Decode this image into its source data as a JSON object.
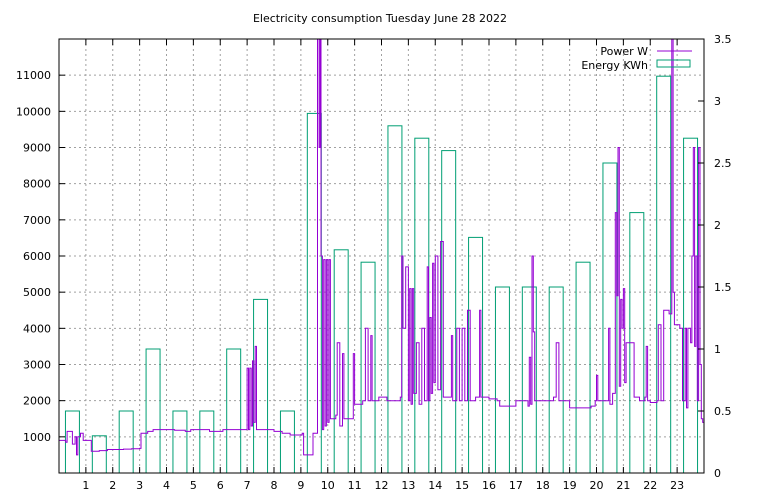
{
  "chart_data": {
    "type": "bar",
    "title": "Electricity consumption Tuesday June 28 2022",
    "grid": true,
    "legend_position": "top-right",
    "colors": {
      "power": "#9400d3",
      "energy": "#009e73"
    },
    "x": {
      "range": [
        0,
        24
      ],
      "ticks": [
        1,
        2,
        3,
        4,
        5,
        6,
        7,
        8,
        9,
        10,
        11,
        12,
        13,
        14,
        15,
        16,
        17,
        18,
        19,
        20,
        21,
        22,
        23
      ]
    },
    "y_left": {
      "range": [
        0,
        12000
      ],
      "ticks": [
        1000,
        2000,
        3000,
        4000,
        5000,
        6000,
        7000,
        8000,
        9000,
        10000,
        11000
      ]
    },
    "y_right": {
      "range": [
        0,
        3.5
      ],
      "ticks": [
        0,
        0.5,
        1,
        1.5,
        2,
        2.5,
        3,
        3.5
      ]
    },
    "series": [
      {
        "name": "Power W",
        "type": "line",
        "axis": "left",
        "points": [
          [
            0,
            900
          ],
          [
            0.25,
            850
          ],
          [
            0.3,
            1150
          ],
          [
            0.45,
            1150
          ],
          [
            0.5,
            800
          ],
          [
            0.6,
            1000
          ],
          [
            0.65,
            500
          ],
          [
            0.7,
            1000
          ],
          [
            0.8,
            1100
          ],
          [
            0.9,
            900
          ],
          [
            1.15,
            900
          ],
          [
            1.2,
            600
          ],
          [
            1.5,
            620
          ],
          [
            1.8,
            650
          ],
          [
            2.1,
            650
          ],
          [
            2.4,
            660
          ],
          [
            2.7,
            670
          ],
          [
            3.0,
            680
          ],
          [
            3.05,
            1100
          ],
          [
            3.3,
            1150
          ],
          [
            3.5,
            1200
          ],
          [
            3.9,
            1200
          ],
          [
            4.3,
            1180
          ],
          [
            4.7,
            1150
          ],
          [
            4.9,
            1200
          ],
          [
            5.3,
            1200
          ],
          [
            5.6,
            1150
          ],
          [
            5.9,
            1150
          ],
          [
            6.1,
            1200
          ],
          [
            6.5,
            1200
          ],
          [
            6.9,
            1200
          ],
          [
            7.0,
            2900
          ],
          [
            7.05,
            1200
          ],
          [
            7.1,
            2900
          ],
          [
            7.15,
            1300
          ],
          [
            7.2,
            3100
          ],
          [
            7.25,
            1400
          ],
          [
            7.3,
            3500
          ],
          [
            7.35,
            1200
          ],
          [
            7.6,
            1200
          ],
          [
            8.0,
            1150
          ],
          [
            8.3,
            1100
          ],
          [
            8.6,
            1050
          ],
          [
            8.9,
            1050
          ],
          [
            9.05,
            1100
          ],
          [
            9.1,
            500
          ],
          [
            9.4,
            500
          ],
          [
            9.45,
            1100
          ],
          [
            9.6,
            1100
          ],
          [
            9.62,
            12000
          ],
          [
            9.68,
            9000
          ],
          [
            9.72,
            12000
          ],
          [
            9.75,
            6000
          ],
          [
            9.8,
            1200
          ],
          [
            9.85,
            5900
          ],
          [
            9.9,
            1300
          ],
          [
            9.95,
            5900
          ],
          [
            10.0,
            1400
          ],
          [
            10.05,
            5900
          ],
          [
            10.1,
            1500
          ],
          [
            10.3,
            1600
          ],
          [
            10.35,
            3600
          ],
          [
            10.45,
            1300
          ],
          [
            10.55,
            3300
          ],
          [
            10.6,
            1500
          ],
          [
            10.9,
            1500
          ],
          [
            10.95,
            3300
          ],
          [
            11.0,
            1900
          ],
          [
            11.3,
            2000
          ],
          [
            11.4,
            4000
          ],
          [
            11.5,
            2000
          ],
          [
            11.6,
            3800
          ],
          [
            11.65,
            2000
          ],
          [
            11.9,
            2100
          ],
          [
            12.2,
            2000
          ],
          [
            12.5,
            2000
          ],
          [
            12.7,
            2100
          ],
          [
            12.75,
            6000
          ],
          [
            12.8,
            4000
          ],
          [
            12.9,
            5700
          ],
          [
            13.0,
            2000
          ],
          [
            13.05,
            5100
          ],
          [
            13.1,
            1900
          ],
          [
            13.15,
            5100
          ],
          [
            13.2,
            2200
          ],
          [
            13.3,
            3600
          ],
          [
            13.4,
            1900
          ],
          [
            13.5,
            4000
          ],
          [
            13.6,
            2000
          ],
          [
            13.7,
            5700
          ],
          [
            13.75,
            2000
          ],
          [
            13.8,
            4300
          ],
          [
            13.85,
            2200
          ],
          [
            13.9,
            5800
          ],
          [
            13.95,
            2500
          ],
          [
            14.0,
            6000
          ],
          [
            14.1,
            2300
          ],
          [
            14.2,
            6400
          ],
          [
            14.3,
            2100
          ],
          [
            14.5,
            2100
          ],
          [
            14.6,
            3800
          ],
          [
            14.65,
            2000
          ],
          [
            14.8,
            4000
          ],
          [
            14.9,
            2000
          ],
          [
            15.0,
            4000
          ],
          [
            15.1,
            2000
          ],
          [
            15.2,
            4500
          ],
          [
            15.3,
            2000
          ],
          [
            15.5,
            2100
          ],
          [
            15.6,
            2100
          ],
          [
            15.65,
            4500
          ],
          [
            15.7,
            2100
          ],
          [
            16.0,
            2050
          ],
          [
            16.3,
            2000
          ],
          [
            16.4,
            1850
          ],
          [
            16.9,
            1850
          ],
          [
            17.0,
            2000
          ],
          [
            17.3,
            2000
          ],
          [
            17.45,
            1850
          ],
          [
            17.5,
            3200
          ],
          [
            17.55,
            1900
          ],
          [
            17.6,
            6000
          ],
          [
            17.65,
            3900
          ],
          [
            17.7,
            2000
          ],
          [
            18.2,
            2000
          ],
          [
            18.4,
            2100
          ],
          [
            18.5,
            3600
          ],
          [
            18.6,
            2000
          ],
          [
            18.9,
            2000
          ],
          [
            19.0,
            1800
          ],
          [
            19.6,
            1800
          ],
          [
            19.8,
            1850
          ],
          [
            19.95,
            2000
          ],
          [
            20.0,
            2700
          ],
          [
            20.05,
            2000
          ],
          [
            20.4,
            2000
          ],
          [
            20.45,
            4000
          ],
          [
            20.5,
            1900
          ],
          [
            20.6,
            2200
          ],
          [
            20.7,
            7200
          ],
          [
            20.75,
            4900
          ],
          [
            20.8,
            9000
          ],
          [
            20.85,
            2400
          ],
          [
            20.9,
            4800
          ],
          [
            20.95,
            4000
          ],
          [
            21.0,
            5100
          ],
          [
            21.05,
            2500
          ],
          [
            21.1,
            3600
          ],
          [
            21.2,
            3600
          ],
          [
            21.4,
            2100
          ],
          [
            21.6,
            2000
          ],
          [
            21.8,
            2100
          ],
          [
            21.85,
            3500
          ],
          [
            21.9,
            2000
          ],
          [
            22.0,
            1950
          ],
          [
            22.25,
            2000
          ],
          [
            22.3,
            4100
          ],
          [
            22.4,
            2000
          ],
          [
            22.5,
            4500
          ],
          [
            22.7,
            4400
          ],
          [
            22.8,
            12000
          ],
          [
            22.85,
            5000
          ],
          [
            22.9,
            4100
          ],
          [
            23.0,
            4100
          ],
          [
            23.1,
            4000
          ],
          [
            23.2,
            2000
          ],
          [
            23.3,
            4000
          ],
          [
            23.35,
            1800
          ],
          [
            23.4,
            4000
          ],
          [
            23.5,
            3600
          ],
          [
            23.55,
            6000
          ],
          [
            23.6,
            9000
          ],
          [
            23.65,
            3500
          ],
          [
            23.7,
            6000
          ],
          [
            23.75,
            2000
          ],
          [
            23.8,
            9000
          ],
          [
            23.85,
            3000
          ],
          [
            23.9,
            1500
          ],
          [
            23.95,
            1400
          ],
          [
            24.0,
            1600
          ]
        ]
      },
      {
        "name": "Energy KWh",
        "type": "bar",
        "axis": "right",
        "categories": [
          0,
          1,
          2,
          3,
          4,
          5,
          6,
          7,
          8,
          9,
          10,
          11,
          12,
          13,
          14,
          15,
          16,
          17,
          18,
          19,
          20,
          21,
          22,
          23
        ],
        "values": [
          0.5,
          0.3,
          0.5,
          1.0,
          0.5,
          0.5,
          1.0,
          1.4,
          0.5,
          2.9,
          1.8,
          1.7,
          2.8,
          2.7,
          2.6,
          1.9,
          1.5,
          1.5,
          1.5,
          1.7,
          2.5,
          2.1,
          3.2,
          2.7
        ]
      }
    ]
  }
}
